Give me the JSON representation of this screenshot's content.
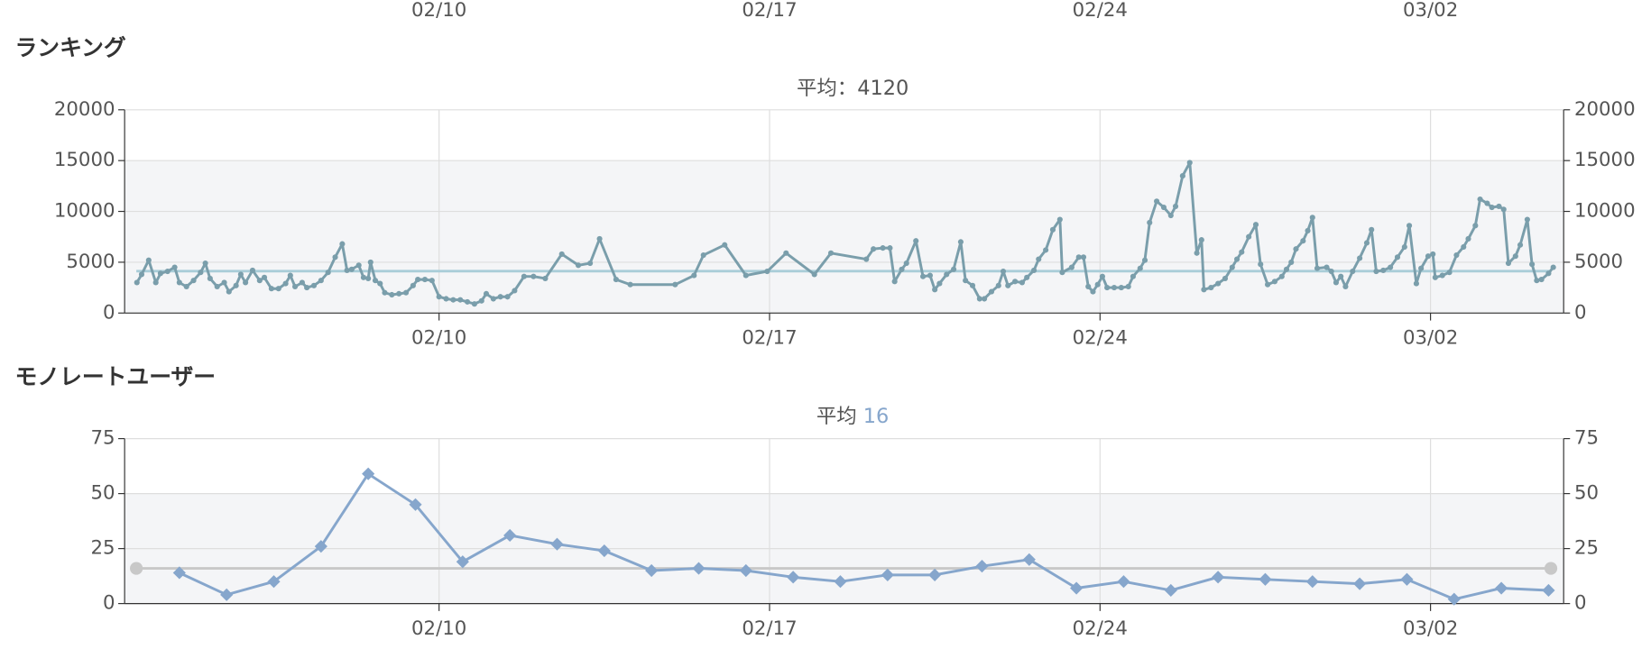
{
  "partial_axis_labels": [
    "02/10",
    "02/17",
    "02/24",
    "03/02"
  ],
  "chart_data": [
    {
      "type": "line",
      "section_title": "ランキング",
      "title": "平均：",
      "average": 4120,
      "color": "#7a9eab",
      "average_color": "#a9cdd8",
      "marker": "circle",
      "x": [
        0.6,
        0.7,
        0.85,
        1.0,
        1.1,
        1.25,
        1.4,
        1.5,
        1.65,
        1.8,
        1.95,
        2.05,
        2.15,
        2.3,
        2.45,
        2.55,
        2.7,
        2.8,
        2.9,
        3.05,
        3.2,
        3.3,
        3.45,
        3.6,
        3.75,
        3.85,
        3.95,
        4.1,
        4.2,
        4.35,
        4.5,
        4.65,
        4.8,
        4.95,
        5.05,
        5.15,
        5.3,
        5.4,
        5.5,
        5.55,
        5.65,
        5.75,
        5.85,
        6.0,
        6.15,
        6.3,
        6.45,
        6.55,
        6.7,
        6.85,
        7.0,
        7.15,
        7.3,
        7.45,
        7.6,
        7.75,
        7.9,
        8.0,
        8.15,
        8.3,
        8.45,
        8.6,
        8.8,
        9.0,
        9.25,
        9.6,
        9.95,
        10.2,
        10.4,
        10.75,
        11.05,
        12.0,
        12.4,
        12.6,
        13.05,
        13.5,
        13.95,
        14.35,
        14.95,
        15.3,
        16.05,
        16.2,
        16.4,
        16.55,
        16.65,
        16.8,
        16.9,
        17.1,
        17.25,
        17.4,
        17.5,
        17.6,
        17.75,
        17.9,
        18.05,
        18.15,
        18.3,
        18.45,
        18.55,
        18.7,
        18.85,
        18.95,
        19.05,
        19.2,
        19.35,
        19.45,
        19.6,
        19.7,
        19.85,
        20.0,
        20.15,
        20.2,
        20.4,
        20.55,
        20.65,
        20.75,
        20.85,
        20.95,
        21.05,
        21.15,
        21.3,
        21.45,
        21.6,
        21.7,
        21.85,
        21.95,
        22.05,
        22.2,
        22.35,
        22.5,
        22.6,
        22.75,
        22.9,
        23.05,
        23.15,
        23.2,
        23.35,
        23.5,
        23.65,
        23.8,
        23.9,
        24.0,
        24.15,
        24.3,
        24.4,
        24.55,
        24.7,
        24.85,
        24.95,
        25.05,
        25.15,
        25.3,
        25.4,
        25.5,
        25.6,
        25.8,
        25.9,
        26.0,
        26.1,
        26.2,
        26.35,
        26.5,
        26.65,
        26.75,
        26.85,
        27.0,
        27.15,
        27.3,
        27.45,
        27.55,
        27.7,
        27.8,
        27.95,
        28.05,
        28.1,
        28.25,
        28.4,
        28.55,
        28.7,
        28.8,
        28.95,
        29.05,
        29.2,
        29.3,
        29.45,
        29.55,
        29.65,
        29.8,
        29.9,
        30.05,
        30.15,
        30.25,
        30.35,
        30.5,
        30.6
      ],
      "values": [
        3000,
        3800,
        5200,
        3000,
        3900,
        4100,
        4500,
        3000,
        2600,
        3200,
        4000,
        4900,
        3400,
        2600,
        3000,
        2100,
        2700,
        3800,
        3000,
        4200,
        3200,
        3500,
        2400,
        2400,
        2900,
        3700,
        2600,
        3000,
        2500,
        2700,
        3200,
        4000,
        5500,
        6800,
        4200,
        4300,
        4700,
        3500,
        3400,
        5000,
        3200,
        2900,
        2000,
        1800,
        1900,
        2000,
        2700,
        3300,
        3300,
        3200,
        1600,
        1400,
        1300,
        1300,
        1100,
        900,
        1200,
        1900,
        1400,
        1600,
        1600,
        2200,
        3600,
        3600,
        3400,
        5800,
        4700,
        4900,
        7300,
        3300,
        2800,
        2800,
        3700,
        5700,
        6700,
        3700,
        4100,
        5900,
        3800,
        5900,
        5300,
        6300,
        6400,
        6400,
        3100,
        4300,
        4900,
        7100,
        3600,
        3700,
        2300,
        2900,
        3800,
        4300,
        7000,
        3200,
        2700,
        1400,
        1400,
        2100,
        2700,
        4100,
        2700,
        3100,
        3000,
        3500,
        4200,
        5300,
        6200,
        8200,
        9200,
        4000,
        4500,
        5500,
        5500,
        2600,
        2100,
        2800,
        3600,
        2500,
        2500,
        2500,
        2600,
        3600,
        4400,
        5200,
        8900,
        11000,
        10400,
        9600,
        10500,
        13500,
        14800,
        5900,
        7200,
        2300,
        2500,
        2900,
        3400,
        4500,
        5300,
        6000,
        7500,
        8700,
        4800,
        2800,
        3100,
        3600,
        4300,
        5000,
        6300,
        7100,
        8100,
        9400,
        4400,
        4500,
        4100,
        3000,
        3600,
        2600,
        4100,
        5400,
        6900,
        8200,
        4100,
        4200,
        4500,
        5500,
        6500,
        8600,
        2900,
        4400,
        5600,
        5800,
        3500,
        3700,
        4000,
        5700,
        6500,
        7300,
        8600,
        11200,
        10800,
        10400,
        10500,
        10200,
        4900,
        5600,
        6700,
        9200,
        4800,
        3200,
        3300,
        3900,
        4500
      ],
      "xlim": [
        0.34,
        30.82
      ],
      "xticks": [
        {
          "value": 7,
          "label": "02/10"
        },
        {
          "value": 14,
          "label": "02/17"
        },
        {
          "value": 21,
          "label": "02/24"
        },
        {
          "value": 28,
          "label": "03/02"
        }
      ],
      "ylim": [
        0,
        20000
      ],
      "yticks": [
        0,
        5000,
        10000,
        15000,
        20000
      ],
      "grid": true
    },
    {
      "type": "line",
      "section_title": "モノレートユーザー",
      "title": "平均",
      "average": 16,
      "color": "#86a6cc",
      "average_color": "#c8c8c8",
      "marker": "diamond",
      "x": [
        1.5,
        2.5,
        3.5,
        4.5,
        5.5,
        6.5,
        7.5,
        8.5,
        9.5,
        10.5,
        11.5,
        12.5,
        13.5,
        14.5,
        15.5,
        16.5,
        17.5,
        18.5,
        19.5,
        20.5,
        21.5,
        22.5,
        23.5,
        24.5,
        25.5,
        26.5,
        27.5,
        28.5,
        29.5,
        30.5
      ],
      "values": [
        14,
        4,
        10,
        26,
        59,
        45,
        19,
        31,
        27,
        24,
        15,
        16,
        15,
        12,
        10,
        13,
        13,
        17,
        20,
        7,
        10,
        6,
        12,
        11,
        10,
        9,
        11,
        2,
        7,
        6
      ],
      "xlim": [
        0.34,
        30.82
      ],
      "xticks": [
        {
          "value": 7,
          "label": "02/10"
        },
        {
          "value": 14,
          "label": "02/17"
        },
        {
          "value": 21,
          "label": "02/24"
        },
        {
          "value": 28,
          "label": "03/02"
        }
      ],
      "ylim": [
        0,
        75
      ],
      "yticks": [
        0,
        25,
        50,
        75
      ],
      "grid": true
    }
  ]
}
